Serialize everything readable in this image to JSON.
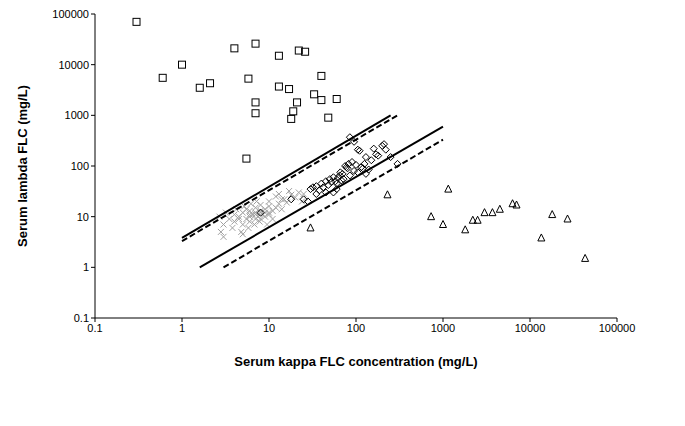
{
  "chart_data": {
    "type": "scatter",
    "x_label": "Serum kappa FLC concentration (mg/L)",
    "y_label": "Serum lambda FLC (mg/L)",
    "log": true,
    "grid": false,
    "xlim": [
      0.1,
      100000
    ],
    "ylim": [
      0.1,
      100000
    ],
    "xticks": [
      0.1,
      1,
      10,
      100,
      1000,
      10000,
      100000
    ],
    "yticks": [
      0.1,
      1,
      10,
      100,
      1000,
      10000,
      100000
    ],
    "series": [
      {
        "type": "scatter",
        "marker": "square",
        "color": "#000000",
        "x": [
          0.3,
          0.6,
          1,
          1.6,
          2.1,
          4,
          5.8,
          7,
          7,
          7,
          5.5,
          13,
          13,
          17,
          22,
          26,
          21,
          18,
          19,
          33,
          40,
          40,
          48,
          60
        ],
        "values": [
          70000,
          5500,
          10000,
          3500,
          4300,
          21000,
          5300,
          26000,
          1800,
          1100,
          140,
          15000,
          3700,
          3300,
          19000,
          18000,
          1800,
          850,
          1200,
          2600,
          6000,
          2000,
          900,
          2100
        ]
      },
      {
        "type": "scatter",
        "marker": "triangle",
        "color": "#000000",
        "x": [
          30,
          230,
          730,
          1000,
          1150,
          1800,
          2200,
          2500,
          3000,
          3700,
          4500,
          6300,
          7000,
          13500,
          18000,
          27000,
          43000
        ],
        "values": [
          6,
          27,
          10,
          7,
          35,
          5.5,
          8.5,
          8.5,
          12,
          12,
          14,
          18,
          17,
          3.8,
          11,
          9,
          1.5
        ]
      },
      {
        "type": "scatter",
        "marker": "cross",
        "color": "#a0a0a0",
        "x": [
          3,
          3.5,
          4,
          4,
          4.5,
          5,
          5,
          5.5,
          5.5,
          6,
          6,
          6,
          6.5,
          7,
          7,
          7,
          7.5,
          8,
          8,
          8,
          8.5,
          9,
          9,
          10,
          10,
          10,
          11,
          12,
          12,
          13,
          14,
          15,
          16,
          18,
          20,
          22,
          25,
          2.8,
          3.2,
          3.8,
          4.2,
          4.8,
          5.2,
          5.8,
          6.2,
          6.8,
          7.2,
          7.8,
          9.5,
          11,
          13,
          5,
          4.5,
          6,
          7,
          8,
          9,
          10,
          14,
          17,
          24,
          3,
          2.7
        ],
        "values": [
          7,
          9,
          8,
          11,
          10,
          7,
          12,
          9,
          14,
          10,
          13,
          8,
          11,
          9,
          15,
          12,
          10,
          13,
          17,
          9,
          11,
          14,
          10,
          12,
          16,
          20,
          13,
          15,
          25,
          18,
          14,
          22,
          19,
          27,
          24,
          30,
          28,
          5,
          12,
          6,
          14,
          5,
          16,
          6,
          18,
          7,
          20,
          8,
          7,
          9,
          28,
          4.5,
          9,
          11,
          11,
          12,
          12,
          11,
          22,
          32,
          20,
          4,
          10
        ]
      },
      {
        "type": "scatter",
        "marker": "diamond",
        "color": "#000000",
        "x": [
          8,
          18,
          25,
          30,
          32,
          35,
          38,
          40,
          42,
          45,
          48,
          50,
          52,
          55,
          58,
          60,
          62,
          65,
          68,
          70,
          72,
          75,
          80,
          85,
          90,
          95,
          100,
          105,
          110,
          115,
          120,
          125,
          130,
          140,
          150,
          160,
          170,
          180,
          200,
          210,
          220,
          250,
          300,
          85,
          95,
          60,
          55,
          45,
          35,
          28,
          130,
          105,
          82,
          78,
          66
        ],
        "values": [
          12,
          22,
          22,
          35,
          38,
          40,
          33,
          45,
          38,
          50,
          42,
          55,
          48,
          60,
          50,
          45,
          58,
          65,
          52,
          70,
          55,
          100,
          90,
          65,
          120,
          80,
          105,
          75,
          200,
          95,
          90,
          110,
          150,
          85,
          130,
          220,
          170,
          160,
          250,
          270,
          210,
          150,
          110,
          370,
          300,
          35,
          30,
          30,
          28,
          20,
          70,
          210,
          110,
          95,
          75
        ]
      },
      {
        "type": "line",
        "line_style": "solid",
        "color": "#000000",
        "x": [
          1,
          250
        ],
        "values": [
          3.8,
          1000
        ]
      },
      {
        "type": "line",
        "line_style": "dashed",
        "color": "#000000",
        "x": [
          1,
          300
        ],
        "values": [
          3.3,
          1000
        ]
      },
      {
        "type": "line",
        "line_style": "solid",
        "color": "#000000",
        "x": [
          1.6,
          1000
        ],
        "values": [
          1,
          600
        ]
      },
      {
        "type": "line",
        "line_style": "dashed",
        "color": "#000000",
        "x": [
          3,
          1000
        ],
        "values": [
          1,
          330
        ]
      }
    ]
  }
}
